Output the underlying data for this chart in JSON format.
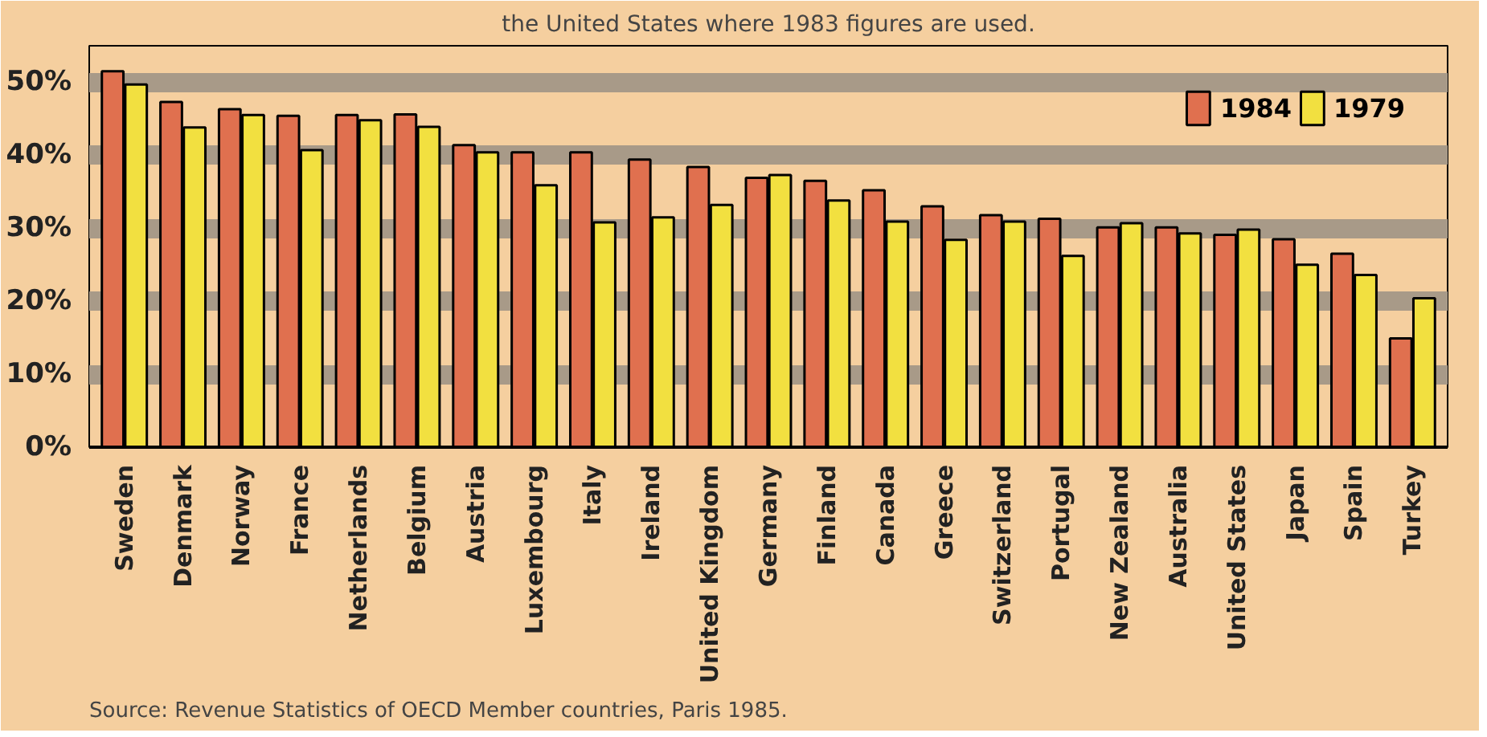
{
  "chart_data": {
    "type": "bar",
    "categories": [
      "Sweden",
      "Denmark",
      "Norway",
      "France",
      "Netherlands",
      "Belgium",
      "Austria",
      "Luxembourg",
      "Italy",
      "Ireland",
      "United Kingdom",
      "Germany",
      "Finland",
      "Canada",
      "Greece",
      "Switzerland",
      "Portugal",
      "New Zealand",
      "Australia",
      "United States",
      "Japan",
      "Spain",
      "Turkey"
    ],
    "series": [
      {
        "name": "1984",
        "color": "#e0704f",
        "values": [
          51.5,
          47.3,
          46.3,
          45.4,
          45.5,
          45.6,
          41.4,
          40.4,
          40.4,
          39.4,
          38.4,
          36.9,
          36.5,
          35.2,
          33.0,
          31.8,
          31.3,
          30.1,
          30.1,
          29.1,
          28.5,
          26.5,
          14.9
        ]
      },
      {
        "name": "1979",
        "color": "#f2e040",
        "values": [
          49.7,
          43.8,
          45.5,
          40.7,
          44.8,
          43.9,
          40.4,
          35.9,
          30.8,
          31.5,
          33.2,
          37.3,
          33.8,
          30.9,
          28.4,
          30.9,
          26.2,
          30.7,
          29.3,
          29.8,
          25.0,
          23.6,
          20.4
        ]
      }
    ],
    "ylim": [
      0,
      55
    ],
    "yticks": [
      {
        "value": 0,
        "label": "0%"
      },
      {
        "value": 10,
        "label": "10%"
      },
      {
        "value": 20,
        "label": "20%"
      },
      {
        "value": 30,
        "label": "30%"
      },
      {
        "value": 40,
        "label": "40%"
      },
      {
        "value": 50,
        "label": "50%"
      }
    ],
    "grid": "y",
    "legend": "top right",
    "annotations": [
      "the United States where 1983 figures are used.",
      "Source: Revenue Statistics of OECD Member countries, Paris 1985."
    ]
  }
}
